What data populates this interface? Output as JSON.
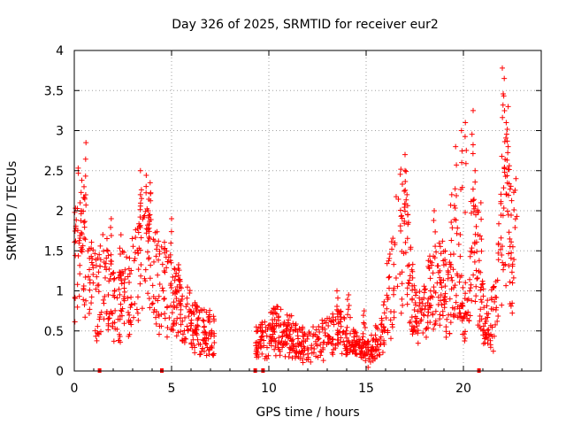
{
  "chart_data": {
    "type": "scatter",
    "title": "Day 326 of 2025, SRMTID for receiver eur2",
    "xlabel": "GPS time / hours",
    "ylabel": "SRMTID / TECUs",
    "xlim": [
      0,
      24
    ],
    "ylim": [
      0,
      4
    ],
    "xticks": [
      0,
      5,
      10,
      15,
      20
    ],
    "xtick_labels": [
      "0",
      "5",
      "10",
      "15",
      "20"
    ],
    "yticks": [
      0,
      0.5,
      1,
      1.5,
      2,
      2.5,
      3,
      3.5,
      4
    ],
    "ytick_labels": [
      "0",
      "0.5",
      "1",
      "1.5",
      "2",
      "2.5",
      "3",
      "3.5",
      "4"
    ],
    "grid": true,
    "marker": "+",
    "marker_color": "#ff0000",
    "gap_markers_x": [
      1.3,
      4.5,
      9.3,
      9.7,
      20.8
    ],
    "series": [
      {
        "name": "SRMTID",
        "segments": [
          {
            "x": [
              0.0,
              0.2,
              0.4,
              0.6,
              0.8,
              1.0,
              1.2,
              1.4,
              1.6,
              1.8,
              2.0,
              2.2,
              2.4,
              2.6,
              2.8,
              3.0,
              3.2,
              3.4,
              3.6,
              3.8,
              4.0,
              4.2,
              4.4,
              4.6,
              4.8,
              5.0,
              5.2,
              5.4,
              5.6,
              5.8,
              6.0,
              6.2,
              6.4,
              6.6,
              6.8,
              7.0,
              7.2
            ],
            "y": [
              1.2,
              1.7,
              1.5,
              1.3,
              1.1,
              1.0,
              0.9,
              1.1,
              1.2,
              1.0,
              0.9,
              0.8,
              0.9,
              1.0,
              1.0,
              1.1,
              1.2,
              1.3,
              1.6,
              1.7,
              1.3,
              1.2,
              1.1,
              1.05,
              1.0,
              0.95,
              0.9,
              0.85,
              0.8,
              0.7,
              0.6,
              0.55,
              0.5,
              0.5,
              0.5,
              0.5,
              0.45
            ]
          },
          {
            "x": [
              9.3,
              9.6,
              9.8,
              10.0,
              10.3,
              10.6,
              11.0,
              11.4,
              11.8,
              12.2,
              12.6,
              13.0,
              13.4,
              13.8,
              14.2,
              14.5,
              14.8,
              15.1,
              15.4,
              15.7,
              16.0
            ],
            "y": [
              0.35,
              0.4,
              0.4,
              0.45,
              0.5,
              0.5,
              0.45,
              0.4,
              0.35,
              0.35,
              0.4,
              0.45,
              0.5,
              0.45,
              0.4,
              0.3,
              0.3,
              0.25,
              0.3,
              0.4,
              0.6
            ]
          },
          {
            "x": [
              16.0,
              16.3,
              16.6,
              16.9,
              17.2,
              17.5,
              17.8,
              18.1,
              18.4,
              18.7,
              19.0,
              19.3,
              19.6,
              19.9,
              20.2,
              20.5,
              20.8,
              21.1,
              21.4,
              21.7,
              22.0,
              22.2,
              22.4,
              22.6
            ],
            "y": [
              0.8,
              1.0,
              1.5,
              1.8,
              1.2,
              0.7,
              0.6,
              0.8,
              1.0,
              1.2,
              1.0,
              0.9,
              1.5,
              1.0,
              0.6,
              1.8,
              1.2,
              0.6,
              0.6,
              0.8,
              1.8,
              2.0,
              1.6,
              1.4
            ]
          }
        ],
        "spikes": [
          {
            "x": 0.6,
            "y": 2.85
          },
          {
            "x": 0.5,
            "y": 2.3
          },
          {
            "x": 0.3,
            "y": 2.1
          },
          {
            "x": 3.4,
            "y": 2.5
          },
          {
            "x": 3.4,
            "y": 2.2
          },
          {
            "x": 3.9,
            "y": 2.35
          },
          {
            "x": 3.8,
            "y": 2.0
          },
          {
            "x": 1.9,
            "y": 1.9
          },
          {
            "x": 2.4,
            "y": 1.7
          },
          {
            "x": 5.0,
            "y": 1.9
          },
          {
            "x": 13.5,
            "y": 1.0
          },
          {
            "x": 14.1,
            "y": 0.95
          },
          {
            "x": 14.9,
            "y": 0.75
          },
          {
            "x": 17.0,
            "y": 2.7
          },
          {
            "x": 17.0,
            "y": 2.5
          },
          {
            "x": 17.1,
            "y": 2.2
          },
          {
            "x": 18.5,
            "y": 2.0
          },
          {
            "x": 19.4,
            "y": 2.2
          },
          {
            "x": 19.6,
            "y": 2.8
          },
          {
            "x": 19.9,
            "y": 3.0
          },
          {
            "x": 20.1,
            "y": 3.1
          },
          {
            "x": 20.5,
            "y": 3.25
          },
          {
            "x": 20.6,
            "y": 2.5
          },
          {
            "x": 20.9,
            "y": 2.1
          },
          {
            "x": 22.0,
            "y": 3.78
          },
          {
            "x": 22.1,
            "y": 3.65
          },
          {
            "x": 22.3,
            "y": 3.3
          },
          {
            "x": 22.2,
            "y": 3.1
          },
          {
            "x": 22.3,
            "y": 2.8
          },
          {
            "x": 22.7,
            "y": 2.4
          }
        ]
      }
    ]
  }
}
